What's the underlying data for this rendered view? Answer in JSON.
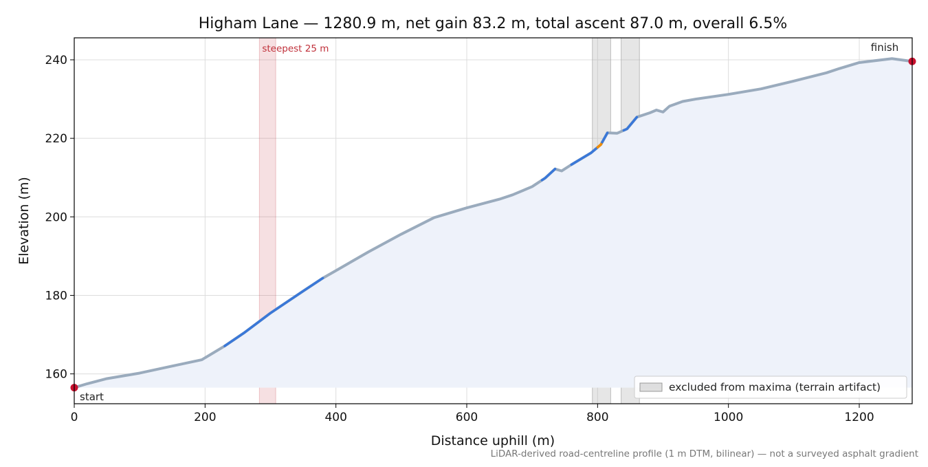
{
  "chart_data": {
    "type": "area",
    "title": "Higham Lane — 1280.9 m, net gain 83.2 m, total ascent 87.0 m, overall 6.5%",
    "xlabel": "Distance uphill (m)",
    "ylabel": "Elevation (m)",
    "xlim": [
      0,
      1280.9
    ],
    "ylim": [
      152.4,
      245.6
    ],
    "x_ticks": [
      0,
      200,
      400,
      600,
      800,
      1000,
      1200
    ],
    "x_tick_labels": [
      "0",
      "200",
      "400",
      "600",
      "800",
      "1000",
      "1200"
    ],
    "y_ticks": [
      160,
      180,
      200,
      220,
      240
    ],
    "y_tick_labels": [
      "160",
      "180",
      "200",
      "220",
      "240"
    ],
    "grid": true,
    "fill_baseline": 156.5,
    "profile": {
      "x": [
        0,
        20,
        50,
        100,
        150,
        195,
        230,
        260,
        300,
        350,
        380,
        400,
        450,
        500,
        550,
        600,
        650,
        670,
        700,
        720,
        735,
        745,
        760,
        790,
        805,
        815,
        830,
        845,
        860,
        880,
        890,
        900,
        910,
        930,
        950,
        1000,
        1050,
        1100,
        1150,
        1170,
        1200,
        1250,
        1280.9
      ],
      "y": [
        156.5,
        157.5,
        158.8,
        160.2,
        162.0,
        163.6,
        167.1,
        170.5,
        175.5,
        181.1,
        184.4,
        186.3,
        191.1,
        195.6,
        199.8,
        202.3,
        204.5,
        205.6,
        207.7,
        209.9,
        212.2,
        211.7,
        213.3,
        216.3,
        218.4,
        221.4,
        221.3,
        222.4,
        225.4,
        226.5,
        227.2,
        226.7,
        228.2,
        229.4,
        230.0,
        231.2,
        232.6,
        234.6,
        236.7,
        237.8,
        239.3,
        240.3,
        239.6
      ]
    },
    "highlight_segments": [
      {
        "x": [
          230,
          380
        ],
        "color": "#3a78d8"
      },
      {
        "x": [
          715,
          735
        ],
        "color": "#3a78d8"
      },
      {
        "x": [
          760,
          800
        ],
        "color": "#3a78d8"
      },
      {
        "x": [
          800,
          807
        ],
        "color": "#f08c00"
      },
      {
        "x": [
          807,
          815
        ],
        "color": "#3a78d8"
      },
      {
        "x": [
          840,
          860
        ],
        "color": "#3a78d8"
      }
    ],
    "steepest_band": {
      "x": [
        283,
        308
      ],
      "label": "steepest 25 m"
    },
    "excluded_bands": [
      [
        792,
        820
      ],
      [
        836,
        864
      ]
    ],
    "markers": [
      {
        "x": 0,
        "y": 156.5,
        "label": "start"
      },
      {
        "x": 1280.9,
        "y": 239.6,
        "label": "finish"
      }
    ],
    "legend": {
      "position": "bottom-right",
      "label": "excluded from maxima (terrain artifact)"
    },
    "footnote": "LiDAR-derived road-centreline profile (1 m DTM, bilinear) — not a surveyed asphalt gradient",
    "colors": {
      "profile": "#9aabbd",
      "fill": "#eef2fa",
      "highlight_default": "#3a78d8",
      "steepest": "#c0303a",
      "excluded": "#b8b8b8",
      "markers": "#c8102e"
    }
  }
}
